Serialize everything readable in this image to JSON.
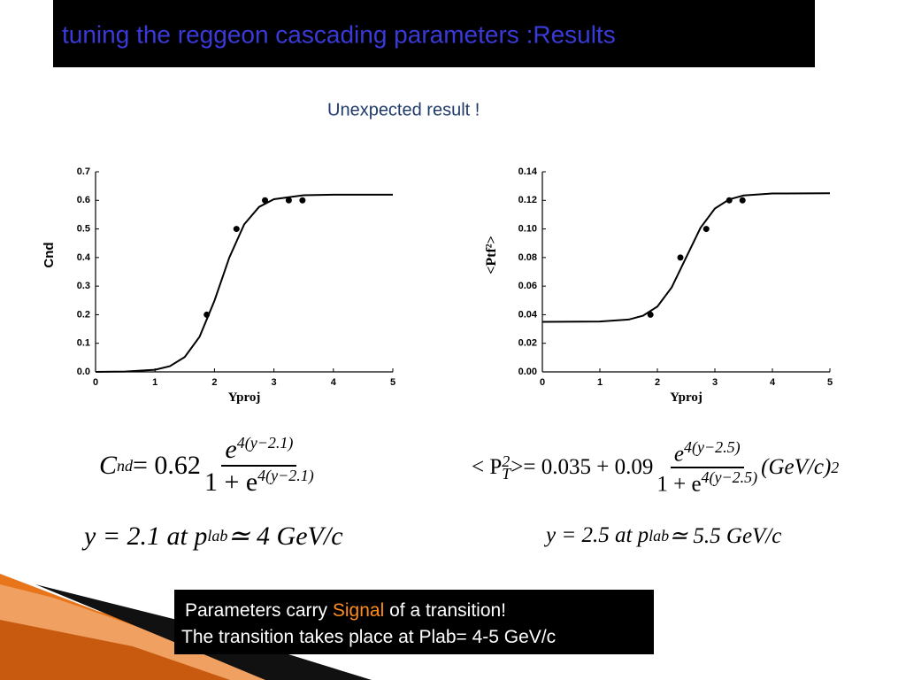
{
  "slide": {
    "title": "tuning the reggeon cascading parameters :Results",
    "subtitle": "Unexpected result !"
  },
  "chart_data": [
    {
      "type": "scatter",
      "xlabel": "Yproj",
      "ylabel": "Cnd",
      "xlim": [
        0,
        5
      ],
      "xticks": [
        0,
        1,
        2,
        3,
        4,
        5
      ],
      "ylim": [
        0,
        0.7
      ],
      "yticks": [
        {
          "value": 0,
          "label": "0.0"
        },
        0.1,
        0.2,
        0.3,
        0.4,
        0.5,
        0.6,
        0.7
      ],
      "series": [
        {
          "mode": "markers",
          "color": "#000000",
          "x": [
            1.87,
            2.37,
            2.85,
            3.25,
            3.48
          ],
          "values": [
            0.2,
            0.5,
            0.6,
            0.6,
            0.6
          ]
        },
        {
          "mode": "line",
          "color": "#000000",
          "x": [
            0,
            0.5,
            1,
            1.25,
            1.5,
            1.75,
            2,
            2.25,
            2.5,
            2.75,
            3,
            3.5,
            4,
            5
          ],
          "values": [
            0.0001,
            0.001,
            0.0075,
            0.02,
            0.052,
            0.123,
            0.249,
            0.4,
            0.516,
            0.577,
            0.604,
            0.618,
            0.62,
            0.62
          ]
        }
      ]
    },
    {
      "type": "scatter",
      "xlabel": "Yproj",
      "ylabel": "<Ptf²>",
      "xlim": [
        0,
        5
      ],
      "xticks": [
        0,
        1,
        2,
        3,
        4,
        5
      ],
      "ylim": [
        0,
        0.14
      ],
      "yticks": [
        {
          "value": 0,
          "label": "0.00"
        },
        {
          "value": 0.02,
          "label": "0.02"
        },
        {
          "value": 0.04,
          "label": "0.04"
        },
        {
          "value": 0.06,
          "label": "0.06"
        },
        {
          "value": 0.08,
          "label": "0.08"
        },
        {
          "value": 0.1,
          "label": "0.10"
        },
        {
          "value": 0.12,
          "label": "0.12"
        },
        {
          "value": 0.14,
          "label": "0.14"
        }
      ],
      "series": [
        {
          "mode": "markers",
          "color": "#000000",
          "x": [
            1.88,
            2.4,
            2.85,
            3.25,
            3.48
          ],
          "values": [
            0.04,
            0.08,
            0.1,
            0.12,
            0.12
          ]
        },
        {
          "mode": "line",
          "color": "#000000",
          "x": [
            0,
            1,
            1.5,
            1.75,
            2,
            2.25,
            2.5,
            2.75,
            3,
            3.25,
            3.5,
            4,
            5
          ],
          "values": [
            0.035,
            0.0352,
            0.0366,
            0.0393,
            0.0457,
            0.0592,
            0.08,
            0.1008,
            0.1143,
            0.1207,
            0.1234,
            0.1248,
            0.125
          ]
        }
      ]
    }
  ],
  "formulas": {
    "left": {
      "lhs": "C",
      "lhs_sub": "nd",
      "eq": " = 0.62",
      "num": "e",
      "num_sup": "4(y−2.1)",
      "den": "1 + e",
      "den_sup": "4(y−2.1)",
      "line2": "y = 2.1  at  p",
      "line2_sub": "lab",
      "line2_end": " ≃ 4  GeV/c"
    },
    "right": {
      "lhs": "< P",
      "lhs_sup": "2",
      "lhs_sub": "T",
      "eq": " >= 0.035 + 0.09",
      "num": "e",
      "num_sup": "4(y−2.5)",
      "den": "1 + e",
      "den_sup": "4(y−2.5)",
      "unit": "(GeV/c)",
      "unit_sup": "2",
      "line2": "y = 2.5  at  p",
      "line2_sub": "lab",
      "line2_end": " ≃ 5.5  GeV/c"
    }
  },
  "note": {
    "line1_start": "Parameters carry ",
    "line1_signal": "Signal",
    "line1_end": " of a transition!",
    "line2": "The transition takes place at Plab= 4-5 GeV/c"
  }
}
